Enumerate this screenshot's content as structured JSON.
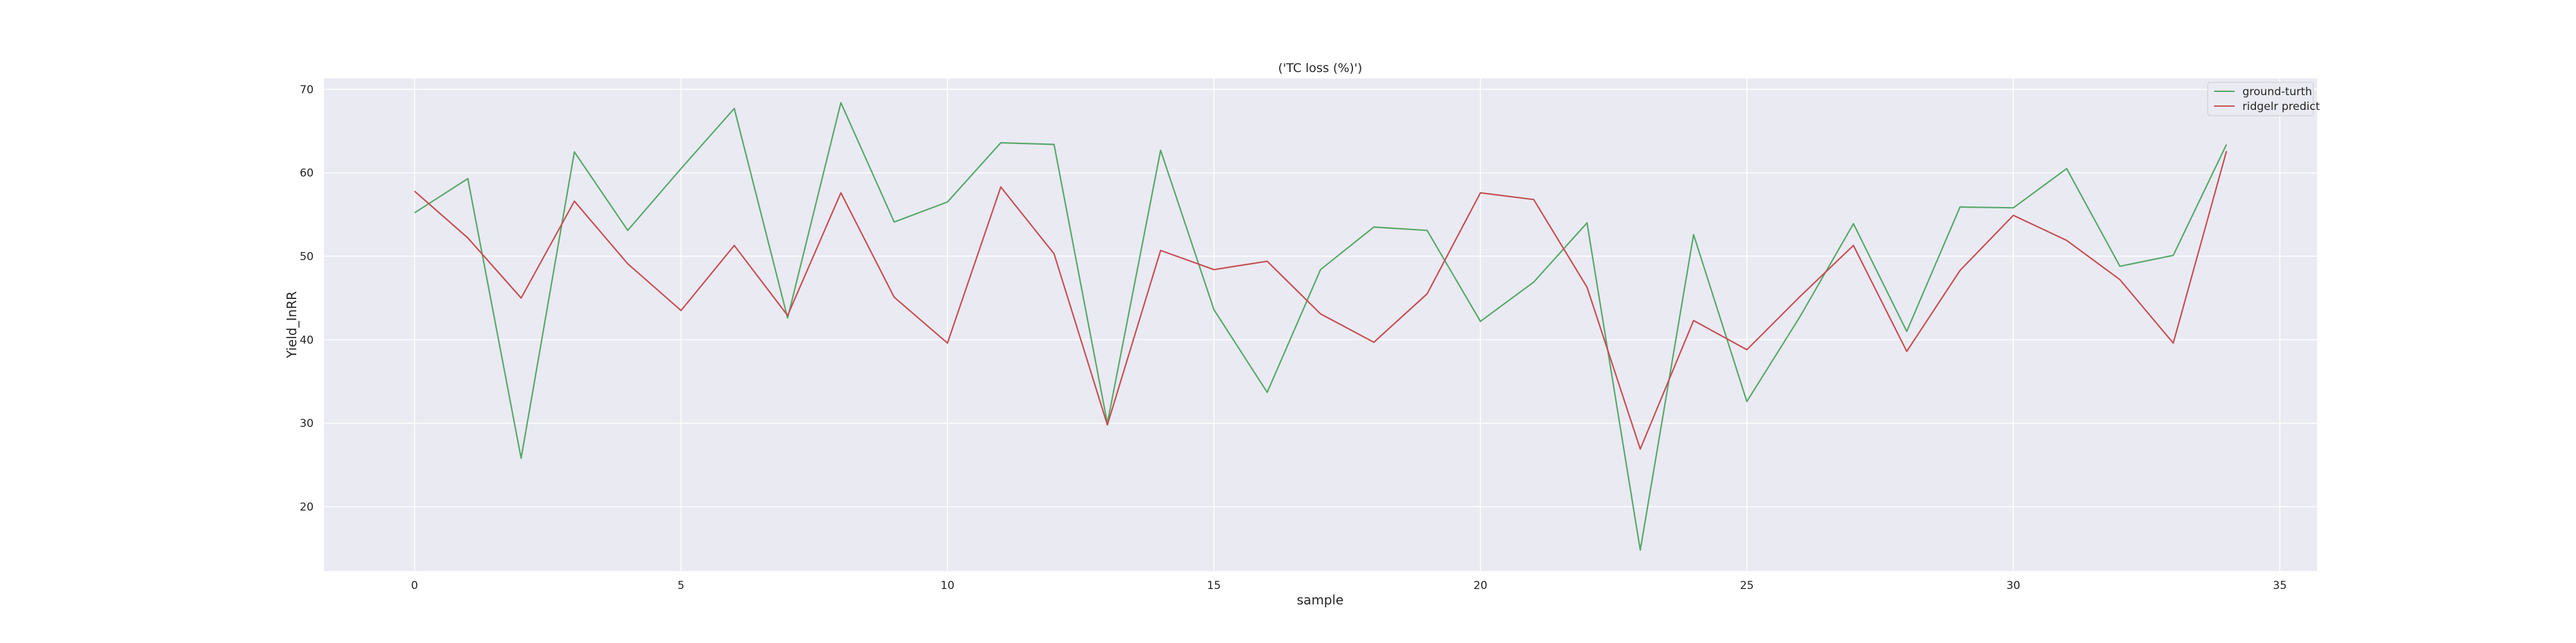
{
  "chart_data": {
    "type": "line",
    "title": "('TC loss (%)')",
    "xlabel": "sample",
    "ylabel": "Yield_InRR",
    "xlim": [
      -1.7,
      35.7
    ],
    "ylim": [
      12.3,
      71.3
    ],
    "xticks": [
      0,
      5,
      10,
      15,
      20,
      25,
      30,
      35
    ],
    "yticks": [
      20,
      30,
      40,
      50,
      60,
      70
    ],
    "grid": true,
    "legend_position": "top-right",
    "x": [
      0,
      1,
      2,
      3,
      4,
      5,
      6,
      7,
      8,
      9,
      10,
      11,
      12,
      13,
      14,
      15,
      16,
      17,
      18,
      19,
      20,
      21,
      22,
      23,
      24,
      25,
      26,
      27,
      28,
      29,
      30,
      31,
      32,
      33,
      34
    ],
    "series": [
      {
        "name": "ground-turth",
        "color": "#55a868",
        "values": [
          55.2,
          59.3,
          25.8,
          62.5,
          53.1,
          60.5,
          67.7,
          42.6,
          68.4,
          54.1,
          56.5,
          63.6,
          63.4,
          30.0,
          62.7,
          43.6,
          33.7,
          48.4,
          53.5,
          53.1,
          42.2,
          46.9,
          54.0,
          14.8,
          52.6,
          32.6,
          42.8,
          53.9,
          41.0,
          55.9,
          55.8,
          60.5,
          48.8,
          50.1,
          63.4
        ]
      },
      {
        "name": "ridgelr predict",
        "color": "#c44e52",
        "values": [
          57.8,
          52.2,
          45.0,
          56.6,
          49.1,
          43.5,
          51.3,
          42.9,
          57.6,
          45.1,
          39.6,
          58.3,
          50.3,
          29.8,
          50.7,
          48.4,
          49.4,
          43.1,
          39.7,
          45.5,
          57.6,
          56.8,
          46.3,
          26.9,
          42.3,
          38.8,
          45.2,
          51.3,
          38.6,
          48.3,
          54.9,
          51.9,
          47.2,
          39.6,
          62.6
        ]
      }
    ]
  }
}
